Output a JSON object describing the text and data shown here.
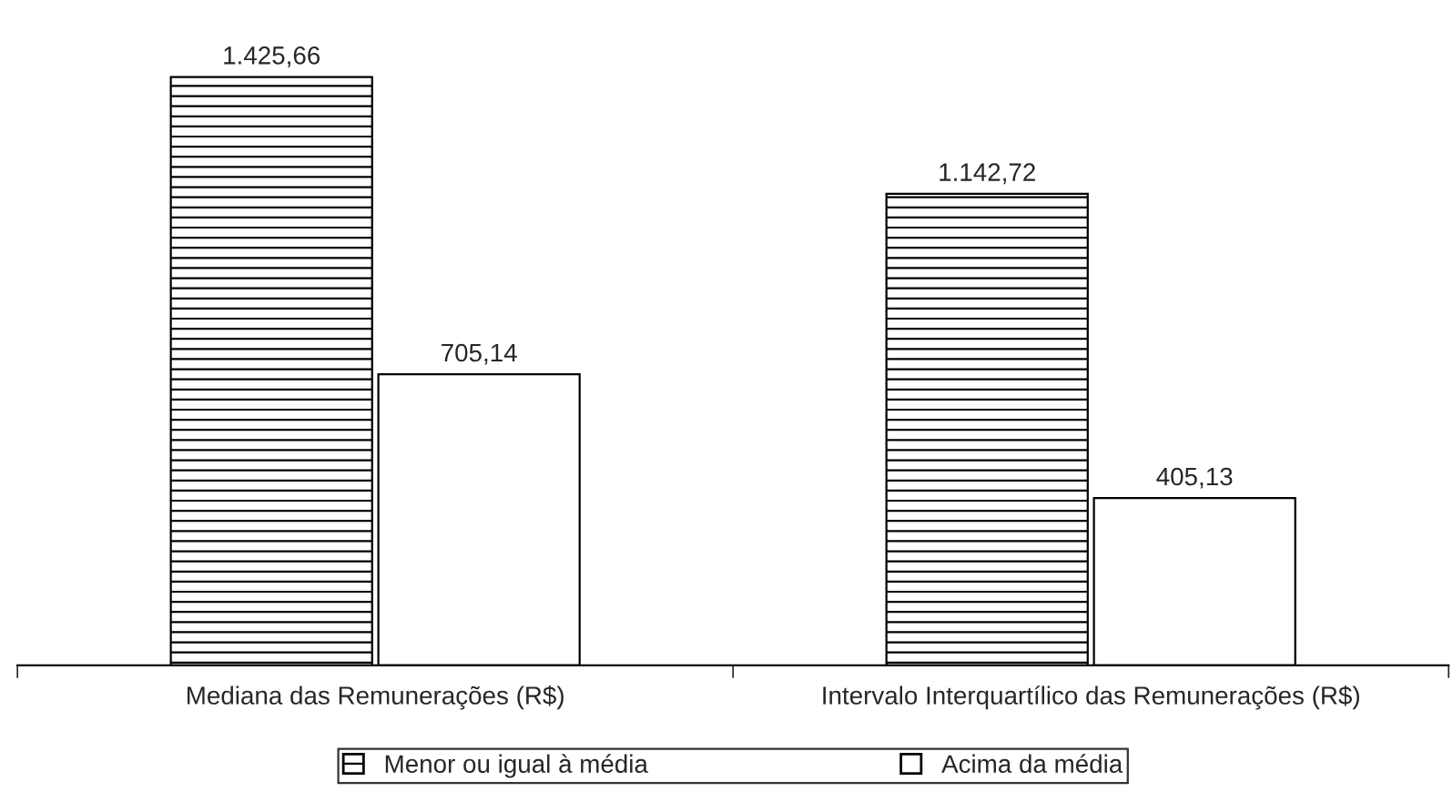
{
  "chart_data": {
    "type": "bar",
    "categories": [
      "Mediana das Remunerações (R$)",
      "Intervalo Interquartílico das Remunerações (R$)"
    ],
    "series": [
      {
        "name": "Menor ou igual à média",
        "color": "#ffffff",
        "values": [
          1425.66,
          1142.72
        ],
        "value_labels": [
          "1.425,66",
          "1.142,72"
        ]
      },
      {
        "name": "Acima da média",
        "color": "#ffffff",
        "values": [
          705.14,
          405.13
        ],
        "value_labels": [
          "705,14",
          "405,13"
        ]
      }
    ],
    "legend": "bottom",
    "grid": false
  }
}
